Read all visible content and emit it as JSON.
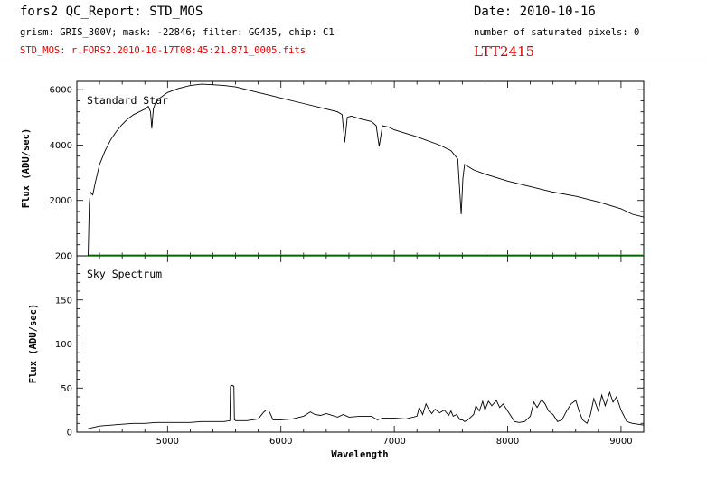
{
  "header": {
    "title": "fors2 QC_Report: STD_MOS",
    "date": "Date: 2010-10-16",
    "config": "grism: GRIS_300V; mask: -22846; filter: GG435, chip: C1",
    "saturated": "number of saturated pixels: 0",
    "file": "STD_MOS: r.FORS2.2010-10-17T08:45:21.871_0005.fits",
    "target": "LTT2415"
  },
  "chart_data": [
    {
      "type": "line",
      "annotation": "Standard Star",
      "xlabel": "",
      "ylabel": "Flux (ADU/sec)",
      "xlim": [
        4200,
        9200
      ],
      "ylim": [
        0,
        6300
      ],
      "yticks": [
        0,
        2000,
        4000,
        6000
      ],
      "colors": {
        "spectrum": "#000000",
        "zero_line": "#00cc00"
      },
      "series": [
        {
          "x": [
            4300,
            4310,
            4320,
            4340,
            4360,
            4400,
            4450,
            4500,
            4550,
            4600,
            4650,
            4700,
            4750,
            4800,
            4830,
            4850,
            4861,
            4875,
            4900,
            5000,
            5100,
            5200,
            5300,
            5400,
            5500,
            5600,
            5700,
            5800,
            5900,
            6000,
            6200,
            6400,
            6500,
            6540,
            6563,
            6585,
            6620,
            6700,
            6800,
            6840,
            6867,
            6895,
            6950,
            7000,
            7200,
            7400,
            7500,
            7560,
            7590,
            7605,
            7620,
            7640,
            7700,
            7800,
            8000,
            8200,
            8400,
            8600,
            8800,
            9000,
            9100,
            9200
          ],
          "y": [
            0,
            1900,
            2300,
            2200,
            2600,
            3300,
            3800,
            4200,
            4500,
            4750,
            4950,
            5100,
            5200,
            5300,
            5400,
            5200,
            4600,
            5300,
            5600,
            5900,
            6050,
            6150,
            6200,
            6180,
            6150,
            6100,
            6000,
            5900,
            5800,
            5700,
            5500,
            5300,
            5200,
            5100,
            4100,
            5000,
            5050,
            4950,
            4850,
            4700,
            3950,
            4700,
            4650,
            4550,
            4300,
            4000,
            3800,
            3500,
            1500,
            2800,
            3300,
            3250,
            3100,
            2950,
            2700,
            2500,
            2300,
            2150,
            1950,
            1700,
            1500,
            1400
          ]
        }
      ]
    },
    {
      "type": "line",
      "annotation": "Sky Spectrum",
      "xlabel": "Wavelength",
      "ylabel": "Flux (ADU/sec)",
      "xlim": [
        4200,
        9200
      ],
      "ylim": [
        0,
        200
      ],
      "xticks": [
        5000,
        6000,
        7000,
        8000,
        9000
      ],
      "yticks": [
        0,
        50,
        100,
        150,
        200
      ],
      "colors": {
        "spectrum": "#000000"
      },
      "series": [
        {
          "x": [
            4300,
            4400,
            4500,
            4600,
            4700,
            4800,
            4900,
            5000,
            5100,
            5200,
            5300,
            5400,
            5500,
            5550,
            5555,
            5570,
            5585,
            5590,
            5600,
            5700,
            5800,
            5850,
            5870,
            5890,
            5910,
            5930,
            6000,
            6100,
            6200,
            6260,
            6300,
            6350,
            6400,
            6500,
            6550,
            6600,
            6700,
            6800,
            6850,
            6900,
            7000,
            7100,
            7200,
            7220,
            7250,
            7280,
            7300,
            7330,
            7360,
            7400,
            7440,
            7480,
            7500,
            7520,
            7550,
            7580,
            7600,
            7620,
            7650,
            7700,
            7720,
            7750,
            7780,
            7800,
            7830,
            7860,
            7900,
            7930,
            7960,
            8000,
            8030,
            8060,
            8100,
            8150,
            8200,
            8230,
            8260,
            8300,
            8330,
            8360,
            8400,
            8440,
            8480,
            8520,
            8560,
            8600,
            8630,
            8660,
            8700,
            8730,
            8760,
            8800,
            8830,
            8860,
            8900,
            8930,
            8960,
            9000,
            9050,
            9100,
            9150,
            9200
          ],
          "y": [
            4,
            7,
            8,
            9,
            10,
            10,
            11,
            11,
            11,
            11,
            12,
            12,
            12,
            13,
            52,
            53,
            52,
            14,
            13,
            13,
            15,
            23,
            25,
            25,
            20,
            14,
            14,
            15,
            18,
            23,
            20,
            19,
            21,
            17,
            20,
            17,
            18,
            18,
            14,
            16,
            16,
            15,
            18,
            28,
            20,
            32,
            27,
            21,
            26,
            22,
            25,
            19,
            24,
            18,
            20,
            14,
            14,
            12,
            14,
            20,
            30,
            24,
            35,
            25,
            35,
            30,
            36,
            28,
            32,
            24,
            18,
            12,
            11,
            12,
            18,
            34,
            28,
            37,
            32,
            24,
            20,
            12,
            14,
            24,
            32,
            36,
            24,
            14,
            10,
            20,
            38,
            24,
            42,
            30,
            45,
            34,
            40,
            25,
            12,
            10,
            9,
            8
          ]
        }
      ]
    }
  ]
}
